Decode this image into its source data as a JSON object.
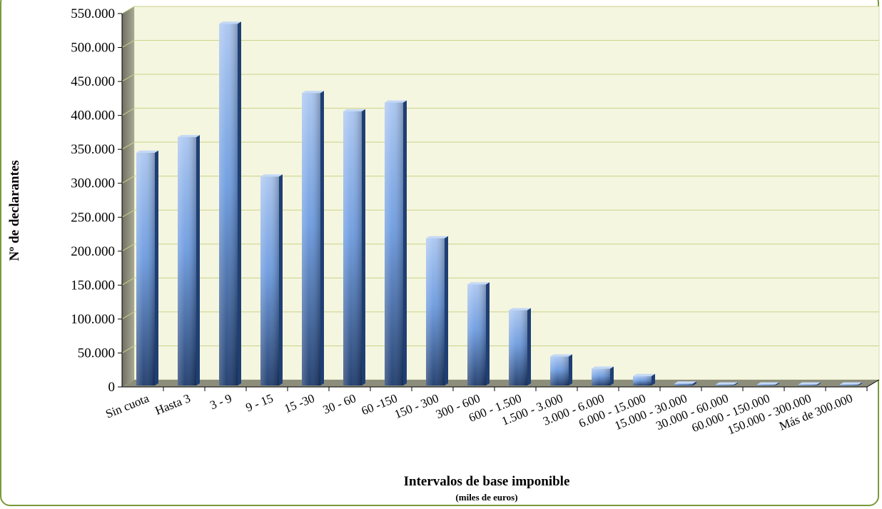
{
  "chart_data": {
    "type": "bar",
    "title": "",
    "xlabel": "Intervalos de base imponible",
    "xlabel_sub": "(miles de euros)",
    "ylabel": "Nº de declarantes",
    "ylim": [
      0,
      550000
    ],
    "yticks": [
      0,
      50000,
      100000,
      150000,
      200000,
      250000,
      300000,
      350000,
      400000,
      450000,
      500000,
      550000
    ],
    "ytick_labels": [
      "0",
      "50.000",
      "100.000",
      "150.000",
      "200.000",
      "250.000",
      "300.000",
      "350.000",
      "400.000",
      "450.000",
      "500.000",
      "550.000"
    ],
    "categories": [
      "Sin cuota",
      "Hasta 3",
      "3 - 9",
      "9 - 15",
      "15 -30",
      "30 - 60",
      "60 -150",
      "150 - 300",
      "300 - 600",
      "600 - 1.500",
      "1.500 - 3.000",
      "3.000 - 6.000",
      "6.000 - 15.000",
      "15.000 - 30.000",
      "30.000 - 60.000",
      "60.000 - 150.000",
      "150.000 - 300.000",
      "Más de 300.000"
    ],
    "values": [
      345000,
      368000,
      535000,
      310000,
      433000,
      406000,
      419000,
      219000,
      151000,
      113000,
      45000,
      27000,
      16000,
      5000,
      2000,
      1000,
      500,
      300
    ],
    "grid": true,
    "legend": "none",
    "colors": {
      "bar_light": "#a9c4ef",
      "bar_mid": "#6d9ce0",
      "bar_dark": "#1f3e73",
      "plot_bg": "#f5f6df",
      "grid": "#c9d28a",
      "wall": "#8a8a7a"
    }
  }
}
